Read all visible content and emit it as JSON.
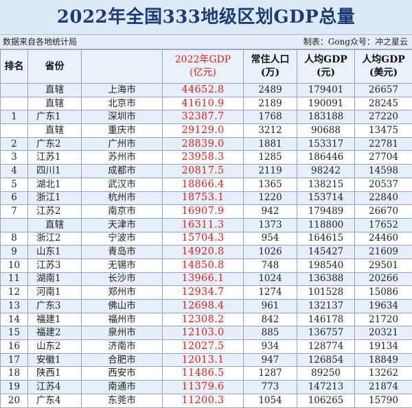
{
  "title": "2022年全国333地级区划GDP总量",
  "source": "数据来自各地统计局",
  "credit": "制表：Gong众号：冲之星云",
  "headers": {
    "rank": "排名",
    "province": "省份",
    "gdp_line1": "2022年GDP",
    "gdp_line2": "(亿元)",
    "pop_line1": "常住人口",
    "pop_line2": "(万)",
    "pc_line1": "人均GDP",
    "pc_line2": "(元)",
    "pcu_line1": "人均GDP",
    "pcu_line2": "(美元)"
  },
  "rows": [
    {
      "rank": "",
      "province": "直辖",
      "city": "上海市",
      "gdp": "44652.8",
      "pop": "2489",
      "pc": "179401",
      "pcu": "26657"
    },
    {
      "rank": "",
      "province": "直辖",
      "city": "北京市",
      "gdp": "41610.9",
      "pop": "2189",
      "pc": "190091",
      "pcu": "28245"
    },
    {
      "rank": "1",
      "province": "广东1",
      "city": "深圳市",
      "gdp": "32387.7",
      "pop": "1768",
      "pc": "183188",
      "pcu": "27220"
    },
    {
      "rank": "",
      "province": "直辖",
      "city": "重庆市",
      "gdp": "29129.0",
      "pop": "3212",
      "pc": "90688",
      "pcu": "13475"
    },
    {
      "rank": "2",
      "province": "广东2",
      "city": "广州市",
      "gdp": "28839.0",
      "pop": "1881",
      "pc": "153317",
      "pcu": "22781"
    },
    {
      "rank": "3",
      "province": "江苏1",
      "city": "苏州市",
      "gdp": "23958.3",
      "pop": "1285",
      "pc": "186446",
      "pcu": "27704"
    },
    {
      "rank": "4",
      "province": "四川1",
      "city": "成都市",
      "gdp": "20817.5",
      "pop": "2119",
      "pc": "98242",
      "pcu": "14598"
    },
    {
      "rank": "5",
      "province": "湖北1",
      "city": "武汉市",
      "gdp": "18866.4",
      "pop": "1365",
      "pc": "138215",
      "pcu": "20537"
    },
    {
      "rank": "6",
      "province": "浙江1",
      "city": "杭州市",
      "gdp": "18753.1",
      "pop": "1220",
      "pc": "153714",
      "pcu": "22840"
    },
    {
      "rank": "7",
      "province": "江苏2",
      "city": "南京市",
      "gdp": "16907.9",
      "pop": "942",
      "pc": "179489",
      "pcu": "26670"
    },
    {
      "rank": "",
      "province": "直辖",
      "city": "天津市",
      "gdp": "16311.3",
      "pop": "1373",
      "pc": "118800",
      "pcu": "17652"
    },
    {
      "rank": "8",
      "province": "浙江2",
      "city": "宁波市",
      "gdp": "15704.3",
      "pop": "954",
      "pc": "164615",
      "pcu": "24460"
    },
    {
      "rank": "9",
      "province": "山东1",
      "city": "青岛市",
      "gdp": "14920.8",
      "pop": "1026",
      "pc": "145427",
      "pcu": "21609"
    },
    {
      "rank": "10",
      "province": "江苏3",
      "city": "无锡市",
      "gdp": "14850.8",
      "pop": "748",
      "pc": "198540",
      "pcu": "29501"
    },
    {
      "rank": "11",
      "province": "湖南1",
      "city": "长沙市",
      "gdp": "13966.1",
      "pop": "1024",
      "pc": "136388",
      "pcu": "20266"
    },
    {
      "rank": "12",
      "province": "河南1",
      "city": "郑州市",
      "gdp": "12934.7",
      "pop": "1274",
      "pc": "101528",
      "pcu": "15086"
    },
    {
      "rank": "13",
      "province": "广东3",
      "city": "佛山市",
      "gdp": "12698.4",
      "pop": "961",
      "pc": "132137",
      "pcu": "19634"
    },
    {
      "rank": "14",
      "province": "福建1",
      "city": "福州市",
      "gdp": "12308.2",
      "pop": "842",
      "pc": "146178",
      "pcu": "21720"
    },
    {
      "rank": "15",
      "province": "福建2",
      "city": "泉州市",
      "gdp": "12103.0",
      "pop": "885",
      "pc": "136757",
      "pcu": "20321"
    },
    {
      "rank": "16",
      "province": "山东2",
      "city": "济南市",
      "gdp": "12027.5",
      "pop": "934",
      "pc": "128774",
      "pcu": "19134"
    },
    {
      "rank": "17",
      "province": "安徽1",
      "city": "合肥市",
      "gdp": "12013.1",
      "pop": "947",
      "pc": "126854",
      "pcu": "18849"
    },
    {
      "rank": "18",
      "province": "陕西1",
      "city": "西安市",
      "gdp": "11486.5",
      "pop": "1287",
      "pc": "89250",
      "pcu": "13262"
    },
    {
      "rank": "19",
      "province": "江苏4",
      "city": "南通市",
      "gdp": "11379.6",
      "pop": "773",
      "pc": "147213",
      "pcu": "21874"
    },
    {
      "rank": "20",
      "province": "广东4",
      "city": "东莞市",
      "gdp": "11200.3",
      "pop": "1054",
      "pc": "106265",
      "pcu": "15790"
    }
  ]
}
